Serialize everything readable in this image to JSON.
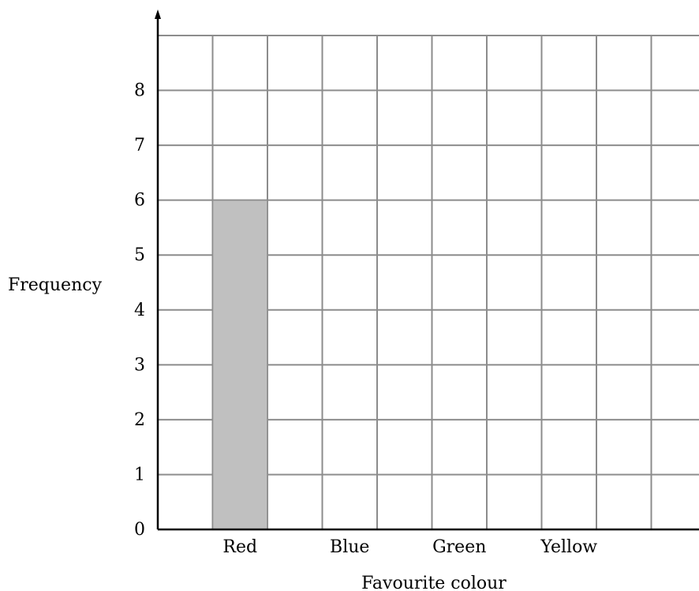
{
  "chart_data": {
    "type": "bar",
    "categories": [
      "Red",
      "Blue",
      "Green",
      "Yellow"
    ],
    "series": [
      {
        "values": [
          6,
          null,
          null,
          null
        ]
      }
    ],
    "xlabel": "Favourite colour",
    "ylabel": "Frequency",
    "yticks": [
      "0",
      "1",
      "2",
      "3",
      "4",
      "5",
      "6",
      "7",
      "8"
    ],
    "ylim": [
      0,
      9
    ],
    "grid": true,
    "bar_color": "#c0c0c0"
  }
}
